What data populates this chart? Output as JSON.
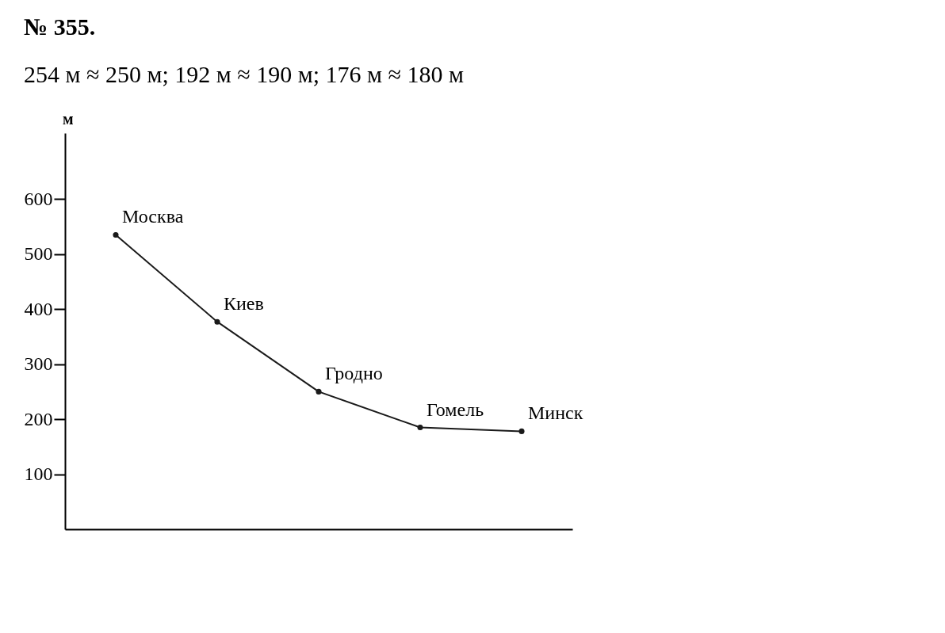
{
  "chart_data": {
    "type": "line",
    "title": "№ 355.",
    "subtitle": "254 м ≈ 250 м;  192 м ≈ 190 м;  176 м ≈ 180 м",
    "ylabel": "м",
    "categories": [
      "Москва",
      "Киев",
      "Гродно",
      "Гомель",
      "Минск"
    ],
    "series": [
      {
        "color": "#1a1a1a",
        "values": [
          535,
          377,
          250,
          185,
          178
        ]
      }
    ],
    "ylim": [
      0,
      720
    ],
    "yticks": [
      100,
      200,
      300,
      400,
      500,
      600
    ],
    "marker": "circle",
    "line_style": "solid",
    "grid": false
  }
}
